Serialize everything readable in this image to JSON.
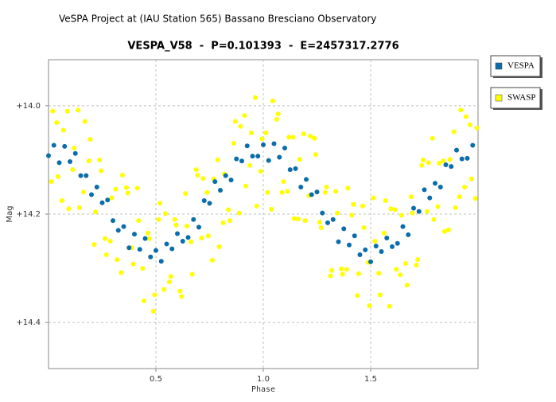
{
  "header": "VeSPA Project at (IAU Station 565) Bassano Bresciano Observatory",
  "chart_data": {
    "type": "scatter",
    "title": "VESPA_V58  -  P=0.101393  -  E=2457317.2776",
    "x_label": "Phase",
    "y_label": "Mag",
    "xlim": [
      0,
      2.0
    ],
    "ylim": [
      14.485,
      13.915
    ],
    "xticks": [
      0.5,
      {
        "value": 1.0,
        "label": "1.0"
      },
      1.5
    ],
    "yticks": [
      {
        "value": 14.0,
        "label": "+14.0"
      },
      {
        "value": 14.2,
        "label": "+14.2"
      },
      {
        "value": 14.4,
        "label": "+14.4"
      }
    ],
    "grid": true,
    "series": [
      {
        "name": "SWASP",
        "color": "#ffff00",
        "x": [
          0.0125,
          0.0375,
          0.0625,
          0.0875,
          0.1125,
          0.1375,
          0.1625,
          0.1875,
          0.2125,
          0.2375,
          0.2625,
          0.2875,
          0.3125,
          0.3375,
          0.3625,
          0.3875,
          0.4125,
          0.4375,
          0.4625,
          0.4875,
          0.5125,
          0.5375,
          0.5625,
          0.5875,
          0.6125,
          0.6375,
          0.6625,
          0.6875,
          0.7125,
          0.7375,
          0.7625,
          0.7875,
          0.8125,
          0.8375,
          0.8625,
          0.8875,
          0.9125,
          0.9375,
          0.9625,
          0.9875,
          1.0125,
          1.0375,
          1.0625,
          1.0875,
          1.1125,
          1.1375,
          1.1625,
          1.1875,
          1.2125,
          1.2375,
          1.2625,
          1.2875,
          1.3125,
          1.3375,
          1.3625,
          1.3875,
          1.4125,
          1.4375,
          1.4625,
          1.4875,
          1.5125,
          1.5375,
          1.5625,
          1.5875,
          1.6125,
          1.6375,
          1.6625,
          1.6875,
          1.7125,
          1.7375,
          1.7625,
          1.7875,
          1.8125,
          1.8375,
          1.8625,
          1.8875,
          1.9125,
          1.9375,
          1.9625,
          1.9875,
          0.019,
          0.044,
          0.069,
          0.094,
          0.119,
          0.144,
          0.169,
          0.194,
          0.219,
          0.244,
          0.269,
          0.294,
          0.319,
          0.344,
          0.369,
          0.394,
          0.419,
          0.444,
          0.469,
          0.494,
          0.519,
          0.544,
          0.569,
          0.594,
          0.619,
          0.644,
          0.669,
          0.694,
          0.719,
          0.744,
          0.769,
          0.794,
          0.819,
          0.844,
          0.869,
          0.894,
          0.919,
          0.944,
          0.969,
          0.994,
          1.019,
          1.044,
          1.069,
          1.094,
          1.119,
          1.144,
          1.169,
          1.194,
          1.219,
          1.244,
          1.269,
          1.294,
          1.319,
          1.344,
          1.369,
          1.394,
          1.419,
          1.444,
          1.469,
          1.494,
          1.519,
          1.544,
          1.569,
          1.594,
          1.619,
          1.644,
          1.669,
          1.694,
          1.719,
          1.744,
          1.769,
          1.794,
          1.819,
          1.844,
          1.869,
          1.894,
          1.919,
          1.944,
          1.969,
          1.994
        ],
        "values": [
          14.14,
          14.031,
          14.175,
          14.01,
          14.118,
          14.008,
          14.159,
          14.102,
          14.256,
          14.1,
          14.245,
          14.25,
          14.154,
          14.308,
          14.151,
          14.262,
          14.152,
          14.3,
          14.235,
          14.379,
          14.21,
          14.339,
          14.325,
          14.21,
          14.342,
          14.162,
          14.251,
          14.118,
          14.244,
          14.16,
          14.285,
          14.1,
          14.216,
          14.192,
          14.069,
          14.198,
          14.018,
          14.11,
          13.985,
          14.121,
          14.05,
          14.191,
          14.025,
          14.16,
          14.158,
          14.058,
          14.209,
          14.052,
          14.166,
          14.06,
          14.215,
          14.16,
          14.314,
          14.158,
          14.301,
          14.302,
          14.202,
          14.35,
          14.185,
          14.289,
          14.17,
          14.309,
          14.235,
          14.37,
          14.192,
          14.312,
          14.291,
          14.168,
          14.294,
          14.11,
          14.195,
          14.06,
          14.186,
          14.102,
          14.229,
          14.048,
          14.168,
          14.15,
          14.035,
          14.171,
          14.01,
          14.131,
          14.045,
          14.19,
          14.078,
          14.188,
          14.029,
          14.062,
          14.196,
          14.12,
          14.275,
          14.17,
          14.284,
          14.128,
          14.161,
          14.292,
          14.212,
          14.36,
          14.245,
          14.349,
          14.18,
          14.199,
          14.315,
          14.22,
          14.352,
          14.222,
          14.311,
          14.128,
          14.134,
          14.24,
          14.135,
          14.26,
          14.126,
          14.212,
          14.029,
          14.038,
          14.148,
          14.05,
          14.185,
          14.061,
          14.16,
          13.991,
          14.015,
          14.14,
          14.058,
          14.208,
          14.099,
          14.212,
          14.056,
          14.09,
          14.225,
          14.15,
          14.304,
          14.198,
          14.311,
          14.152,
          14.182,
          14.31,
          14.225,
          14.369,
          14.25,
          14.349,
          14.175,
          14.19,
          14.302,
          14.202,
          14.331,
          14.198,
          14.284,
          14.1,
          14.105,
          14.21,
          14.106,
          14.232,
          14.099,
          14.188,
          14.008,
          14.02,
          14.135,
          14.041
        ]
      },
      {
        "name": "VESPA",
        "color": "#0b6daa",
        "x": [
          0,
          0.025,
          0.05,
          0.075,
          0.1,
          0.125,
          0.15,
          0.175,
          0.2,
          0.225,
          0.25,
          0.275,
          0.3,
          0.325,
          0.35,
          0.375,
          0.4,
          0.425,
          0.45,
          0.475,
          0.5,
          0.525,
          0.55,
          0.575,
          0.6,
          0.625,
          0.65,
          0.675,
          0.7,
          0.725,
          0.75,
          0.775,
          0.8,
          0.825,
          0.85,
          0.875,
          0.9,
          0.925,
          0.95,
          0.975,
          1,
          1.025,
          1.05,
          1.075,
          1.1,
          1.125,
          1.15,
          1.175,
          1.2,
          1.225,
          1.25,
          1.275,
          1.3,
          1.325,
          1.35,
          1.375,
          1.4,
          1.425,
          1.45,
          1.475,
          1.5,
          1.525,
          1.55,
          1.575,
          1.6,
          1.625,
          1.65,
          1.675,
          1.7,
          1.725,
          1.75,
          1.775,
          1.8,
          1.825,
          1.85,
          1.875,
          1.9,
          1.925,
          1.95,
          1.975
        ],
        "values": [
          14.092,
          14.073,
          14.105,
          14.075,
          14.103,
          14.088,
          14.129,
          14.129,
          14.164,
          14.15,
          14.179,
          14.174,
          14.212,
          14.23,
          14.223,
          14.262,
          14.237,
          14.265,
          14.245,
          14.279,
          14.267,
          14.287,
          14.255,
          14.264,
          14.236,
          14.25,
          14.243,
          14.21,
          14.224,
          14.175,
          14.18,
          14.14,
          14.156,
          14.129,
          14.137,
          14.098,
          14.102,
          14.074,
          14.093,
          14.093,
          14.072,
          14.101,
          14.07,
          14.095,
          14.078,
          14.118,
          14.116,
          14.15,
          14.136,
          14.164,
          14.159,
          14.198,
          14.216,
          14.21,
          14.251,
          14.227,
          14.257,
          14.24,
          14.275,
          14.266,
          14.288,
          14.259,
          14.269,
          14.244,
          14.26,
          14.254,
          14.223,
          14.238,
          14.189,
          14.195,
          14.155,
          14.17,
          14.143,
          14.15,
          14.109,
          14.112,
          14.082,
          14.098,
          14.097,
          14.073
        ]
      }
    ]
  }
}
